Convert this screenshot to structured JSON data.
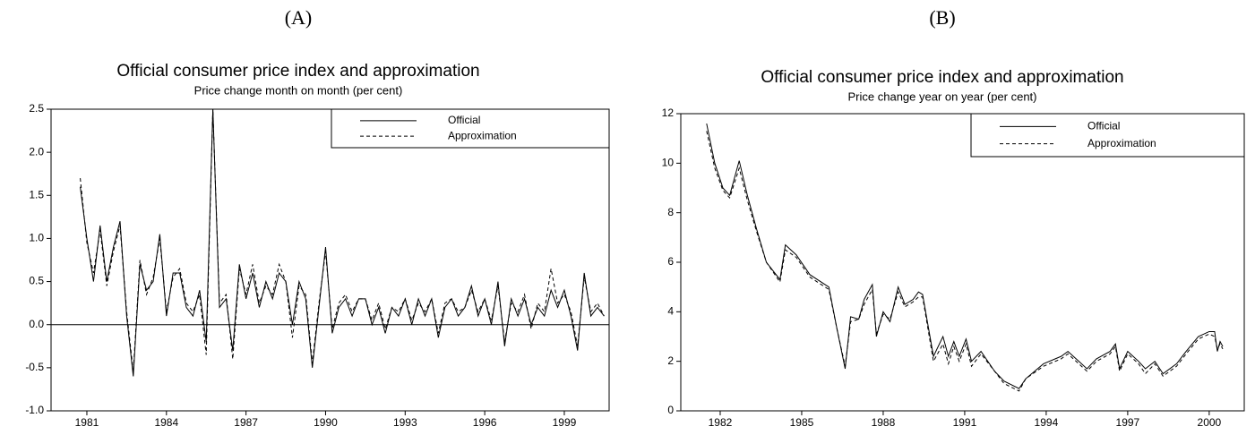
{
  "chart_data": [
    {
      "type": "line",
      "panel_label": "(A)",
      "title": "Official consumer price index and approximation",
      "subtitle": "Price change month on month (per cent)",
      "xlim": [
        1979.65,
        2000.69
      ],
      "xticks": [
        1981,
        1984,
        1987,
        1990,
        1993,
        1996,
        1999
      ],
      "ylim": [
        -1,
        2.5
      ],
      "yticks": [
        {
          "value": -1,
          "label": "-1.0"
        },
        -0.5,
        {
          "value": 0,
          "label": "0.0"
        },
        0.5,
        {
          "value": 1,
          "label": "1.0"
        },
        1.5,
        {
          "value": 2,
          "label": "2.0"
        },
        2.5
      ],
      "reference_line": 0,
      "legend": "upper right",
      "x": [
        1980.75,
        1981,
        1981.25,
        1981.5,
        1981.75,
        1982,
        1982.25,
        1982.5,
        1982.75,
        1983,
        1983.25,
        1983.5,
        1983.75,
        1984,
        1984.25,
        1984.5,
        1984.75,
        1985,
        1985.25,
        1985.5,
        1985.75,
        1986,
        1986.25,
        1986.5,
        1986.75,
        1987,
        1987.25,
        1987.5,
        1987.75,
        1988,
        1988.25,
        1988.5,
        1988.75,
        1989,
        1989.25,
        1989.5,
        1989.75,
        1990,
        1990.25,
        1990.5,
        1990.75,
        1991,
        1991.25,
        1991.5,
        1991.75,
        1992,
        1992.25,
        1992.5,
        1992.75,
        1993,
        1993.25,
        1993.5,
        1993.75,
        1994,
        1994.25,
        1994.5,
        1994.75,
        1995,
        1995.25,
        1995.5,
        1995.75,
        1996,
        1996.25,
        1996.5,
        1996.75,
        1997,
        1997.25,
        1997.5,
        1997.75,
        1998,
        1998.25,
        1998.5,
        1998.75,
        1999,
        1999.25,
        1999.5,
        1999.75,
        2000,
        2000.25,
        2000.5
      ],
      "series": [
        {
          "name": "Official",
          "color": "#000000",
          "linestyle": "solid",
          "values": [
            1.6,
            1.0,
            0.5,
            1.15,
            0.5,
            0.9,
            1.2,
            0.1,
            -0.6,
            0.7,
            0.4,
            0.5,
            1.05,
            0.1,
            0.6,
            0.6,
            0.2,
            0.1,
            0.4,
            -0.2,
            2.5,
            0.2,
            0.3,
            -0.3,
            0.7,
            0.3,
            0.6,
            0.2,
            0.5,
            0.3,
            0.6,
            0.5,
            0.0,
            0.5,
            0.3,
            -0.5,
            0.2,
            0.9,
            -0.1,
            0.2,
            0.3,
            0.1,
            0.3,
            0.3,
            0.0,
            0.2,
            -0.1,
            0.2,
            0.1,
            0.3,
            0.0,
            0.3,
            0.1,
            0.3,
            -0.15,
            0.2,
            0.3,
            0.1,
            0.2,
            0.45,
            0.1,
            0.3,
            0.0,
            0.5,
            -0.25,
            0.3,
            0.1,
            0.3,
            0.0,
            0.2,
            0.1,
            0.4,
            0.2,
            0.4,
            0.1,
            -0.3,
            0.6,
            0.1,
            0.2,
            0.1
          ]
        },
        {
          "name": "Approximation",
          "color": "#000000",
          "linestyle": "dashed",
          "values": [
            1.7,
            0.95,
            0.6,
            1.1,
            0.45,
            0.85,
            1.15,
            0.15,
            -0.55,
            0.75,
            0.35,
            0.55,
            1.0,
            0.15,
            0.55,
            0.65,
            0.25,
            0.15,
            0.35,
            -0.35,
            2.5,
            0.25,
            0.35,
            -0.4,
            0.65,
            0.35,
            0.7,
            0.25,
            0.45,
            0.35,
            0.7,
            0.5,
            -0.15,
            0.45,
            0.35,
            -0.45,
            0.25,
            0.85,
            -0.05,
            0.25,
            0.35,
            0.15,
            0.3,
            0.3,
            0.05,
            0.25,
            -0.05,
            0.2,
            0.15,
            0.3,
            0.05,
            0.25,
            0.15,
            0.3,
            -0.1,
            0.25,
            0.3,
            0.15,
            0.2,
            0.4,
            0.15,
            0.3,
            0.05,
            0.45,
            -0.2,
            0.25,
            0.15,
            0.35,
            -0.05,
            0.25,
            0.15,
            0.65,
            0.25,
            0.35,
            0.15,
            -0.25,
            0.55,
            0.15,
            0.25,
            0.1
          ]
        }
      ]
    },
    {
      "type": "line",
      "panel_label": "(B)",
      "title": "Official consumer price index and approximation",
      "subtitle": "Price change year on year (per cent)",
      "xlim": [
        1980.55,
        2001.29
      ],
      "xticks": [
        1982,
        1985,
        1988,
        1991,
        1994,
        1997,
        2000
      ],
      "ylim": [
        0,
        12
      ],
      "yticks": [
        0,
        2,
        4,
        6,
        8,
        10,
        12
      ],
      "legend": "upper right",
      "x": [
        1981.5,
        1981.8,
        1982.1,
        1982.35,
        1982.7,
        1983,
        1983.35,
        1983.7,
        1984.2,
        1984.4,
        1984.8,
        1985.3,
        1986,
        1986.3,
        1986.6,
        1986.8,
        1987.1,
        1987.3,
        1987.6,
        1987.75,
        1988,
        1988.25,
        1988.55,
        1988.8,
        1989.1,
        1989.3,
        1989.45,
        1989.85,
        1990.2,
        1990.4,
        1990.6,
        1990.8,
        1991.05,
        1991.25,
        1991.6,
        1992.1,
        1992.45,
        1993,
        1993.25,
        1993.9,
        1994.55,
        1994.8,
        1995.2,
        1995.5,
        1995.85,
        1996.35,
        1996.55,
        1996.7,
        1997,
        1997.4,
        1997.65,
        1998,
        1998.3,
        1998.8,
        1999.15,
        1999.6,
        2000,
        2000.2,
        2000.3,
        2000.4,
        2000.5
      ],
      "series": [
        {
          "name": "Official",
          "color": "#000000",
          "linestyle": "solid",
          "values": [
            11.6,
            10.0,
            9.0,
            8.7,
            10.1,
            8.7,
            7.3,
            6.0,
            5.3,
            6.7,
            6.3,
            5.5,
            5.0,
            3.3,
            1.7,
            3.8,
            3.7,
            4.5,
            5.1,
            3.0,
            4.0,
            3.6,
            5.0,
            4.3,
            4.5,
            4.8,
            4.7,
            2.2,
            3.0,
            2.2,
            2.8,
            2.2,
            2.9,
            2.0,
            2.4,
            1.6,
            1.2,
            0.9,
            1.3,
            1.9,
            2.2,
            2.4,
            2.0,
            1.7,
            2.1,
            2.4,
            2.7,
            1.7,
            2.4,
            2.0,
            1.7,
            2.0,
            1.5,
            1.9,
            2.4,
            3.0,
            3.2,
            3.2,
            2.4,
            2.8,
            2.6
          ]
        },
        {
          "name": "Approximation",
          "color": "#000000",
          "linestyle": "dashed",
          "values": [
            11.3,
            9.8,
            8.9,
            8.6,
            9.8,
            8.5,
            7.2,
            6.0,
            5.2,
            6.5,
            6.2,
            5.4,
            4.9,
            3.3,
            1.8,
            3.6,
            3.7,
            4.3,
            4.9,
            3.1,
            3.9,
            3.7,
            4.8,
            4.2,
            4.4,
            4.6,
            4.6,
            2.0,
            2.7,
            1.9,
            2.6,
            2.0,
            2.7,
            1.8,
            2.3,
            1.6,
            1.1,
            0.8,
            1.3,
            1.8,
            2.1,
            2.3,
            1.9,
            1.6,
            2.0,
            2.3,
            2.6,
            1.6,
            2.3,
            1.9,
            1.5,
            1.9,
            1.4,
            1.8,
            2.3,
            2.9,
            3.1,
            3.0,
            2.5,
            2.7,
            2.5
          ]
        }
      ]
    }
  ]
}
